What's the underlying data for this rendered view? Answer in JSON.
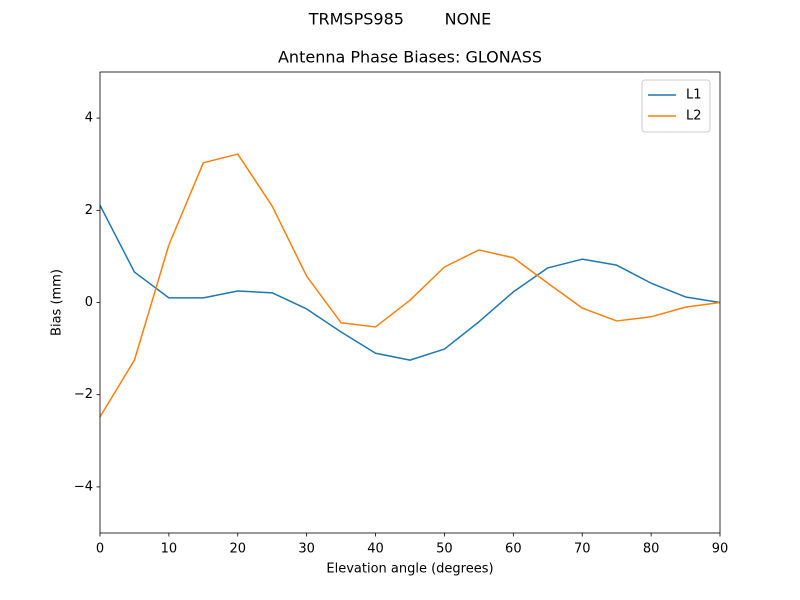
{
  "chart_data": {
    "type": "line",
    "suptitle": "TRMSPS985        NONE",
    "title": "Antenna Phase Biases: GLONASS",
    "x_label": "Elevation angle (degrees)",
    "y_label": "Bias (mm)",
    "x": [
      0,
      5,
      10,
      15,
      20,
      25,
      30,
      35,
      40,
      45,
      50,
      55,
      60,
      65,
      70,
      75,
      80,
      85,
      90
    ],
    "series": [
      {
        "name": "L1",
        "color": "#1f77b4",
        "values": [
          2.11,
          0.66,
          0.1,
          0.1,
          0.25,
          0.21,
          -0.14,
          -0.64,
          -1.1,
          -1.25,
          -1.01,
          -0.42,
          0.23,
          0.75,
          0.94,
          0.81,
          0.42,
          0.12,
          0
        ]
      },
      {
        "name": "L2",
        "color": "#ff7f0e",
        "values": [
          -2.48,
          -1.25,
          1.25,
          3.03,
          3.22,
          2.09,
          0.57,
          -0.44,
          -0.53,
          0.05,
          0.77,
          1.14,
          0.97,
          0.42,
          -0.12,
          -0.4,
          -0.31,
          -0.1,
          0
        ]
      }
    ],
    "xlim": [
      0,
      90
    ],
    "ylim": [
      -5,
      5
    ],
    "xticks": [
      0,
      10,
      20,
      30,
      40,
      50,
      60,
      70,
      80,
      90
    ],
    "yticks": [
      {
        "value": -4,
        "label": "−4"
      },
      {
        "value": -2,
        "label": "−2"
      },
      0,
      2,
      4
    ],
    "grid": false,
    "legend": "upper right"
  }
}
